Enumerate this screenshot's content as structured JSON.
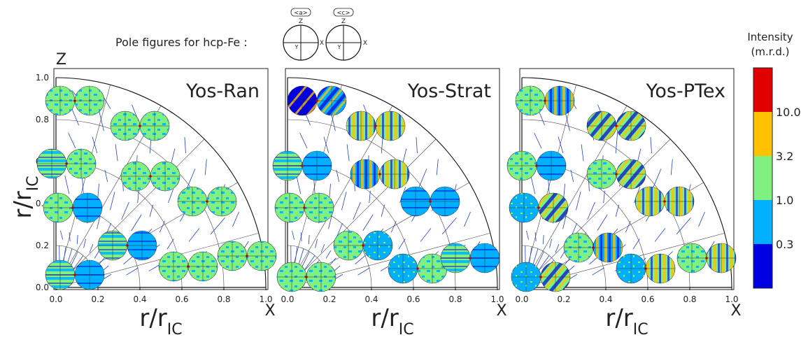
{
  "header": {
    "caption": "Pole figures for hcp-Fe :",
    "legend_a": "<a>",
    "legend_c": "<c>",
    "legend_z": "Z",
    "legend_y": "Y",
    "legend_x": "X"
  },
  "axes": {
    "y_label_main": "r/r",
    "y_label_sub": "IC",
    "x_label_main": "r/r",
    "x_label_sub": "IC",
    "z_axis_letter": "Z",
    "x_axis_letter": "X"
  },
  "colorbar": {
    "title_line1": "Intensity",
    "title_line2": "(m.r.d.)",
    "bands": [
      {
        "color": "#e00000"
      },
      {
        "color": "#ffc000"
      },
      {
        "color": "#80f080"
      },
      {
        "color": "#00b0ff"
      },
      {
        "color": "#0000e0"
      }
    ],
    "tick_labels": [
      "10.0",
      "3.2",
      "1.0",
      "0.3"
    ]
  },
  "chart_data": {
    "type": "scatter",
    "description": "",
    "xlim": [
      0,
      1
    ],
    "ylim": [
      0,
      1
    ],
    "x_ticks": [
      "0.0",
      "0.2",
      "0.4",
      "0.6",
      "0.8",
      "1.0"
    ],
    "y_ticks": [
      "0.0",
      "0.2",
      "0.4",
      "0.6",
      "0.8",
      "1.0"
    ],
    "panels": [
      {
        "title": "Yos-Ran",
        "pole_figures": [
          {
            "x": 0.09,
            "y": 0.89,
            "a_fill": "#80f080",
            "c_fill": "#80f080",
            "a_pattern": "speckle",
            "c_pattern": "speckle"
          },
          {
            "x": 0.4,
            "y": 0.77,
            "a_fill": "#80f080",
            "c_fill": "#80f080",
            "a_pattern": "speckle",
            "c_pattern": "speckle"
          },
          {
            "x": 0.05,
            "y": 0.59,
            "a_fill": "#80f080",
            "c_fill": "#80f080",
            "a_pattern": "band_h",
            "c_pattern": "speckle"
          },
          {
            "x": 0.45,
            "y": 0.53,
            "a_fill": "#80f080",
            "c_fill": "#80f080",
            "a_pattern": "speckle",
            "c_pattern": "speckle"
          },
          {
            "x": 0.08,
            "y": 0.38,
            "a_fill": "#80f080",
            "c_fill": "#00b0ff",
            "a_pattern": "speckle",
            "c_pattern": "band_h"
          },
          {
            "x": 0.72,
            "y": 0.41,
            "a_fill": "#80f080",
            "c_fill": "#80f080",
            "a_pattern": "speckle",
            "c_pattern": "speckle"
          },
          {
            "x": 0.34,
            "y": 0.2,
            "a_fill": "#80f080",
            "c_fill": "#00b0ff",
            "a_pattern": "band_h",
            "c_pattern": "band_h"
          },
          {
            "x": 0.63,
            "y": 0.1,
            "a_fill": "#80f080",
            "c_fill": "#80f080",
            "a_pattern": "speckle",
            "c_pattern": "speckle"
          },
          {
            "x": 0.91,
            "y": 0.15,
            "a_fill": "#80f080",
            "c_fill": "#80f080",
            "a_pattern": "speckle",
            "c_pattern": "speckle"
          },
          {
            "x": 0.09,
            "y": 0.06,
            "a_fill": "#80f080",
            "c_fill": "#00b0ff",
            "a_pattern": "band_h",
            "c_pattern": "band_h"
          }
        ]
      },
      {
        "title": "Yos-Strat",
        "pole_figures": [
          {
            "x": 0.14,
            "y": 0.89,
            "a_fill": "#0000e0",
            "c_fill": "#00b0ff",
            "a_pattern": "diag",
            "c_pattern": "diag"
          },
          {
            "x": 0.42,
            "y": 0.77,
            "a_fill": "#80f080",
            "c_fill": "#80f080",
            "a_pattern": "band_v",
            "c_pattern": "band_v"
          },
          {
            "x": 0.07,
            "y": 0.58,
            "a_fill": "#80f080",
            "c_fill": "#00b0ff",
            "a_pattern": "band_h",
            "c_pattern": "band_h"
          },
          {
            "x": 0.44,
            "y": 0.54,
            "a_fill": "#00b0ff",
            "c_fill": "#80f080",
            "a_pattern": "band_v",
            "c_pattern": "band_v"
          },
          {
            "x": 0.08,
            "y": 0.38,
            "a_fill": "#80f080",
            "c_fill": "#80f080",
            "a_pattern": "speckle",
            "c_pattern": "speckle"
          },
          {
            "x": 0.68,
            "y": 0.41,
            "a_fill": "#00b0ff",
            "c_fill": "#00b0ff",
            "a_pattern": "band_h",
            "c_pattern": "band_h"
          },
          {
            "x": 0.36,
            "y": 0.2,
            "a_fill": "#80f080",
            "c_fill": "#00b0ff",
            "a_pattern": "speckle",
            "c_pattern": "speckle"
          },
          {
            "x": 0.62,
            "y": 0.09,
            "a_fill": "#00b0ff",
            "c_fill": "#80f080",
            "a_pattern": "speckle",
            "c_pattern": "speckle"
          },
          {
            "x": 0.87,
            "y": 0.14,
            "a_fill": "#80f080",
            "c_fill": "#00b0ff",
            "a_pattern": "band_h",
            "c_pattern": "band_h"
          },
          {
            "x": 0.09,
            "y": 0.05,
            "a_fill": "#80f080",
            "c_fill": "#80f080",
            "a_pattern": "speckle",
            "c_pattern": "speckle"
          }
        ]
      },
      {
        "title": "Yos-PTex",
        "pole_figures": [
          {
            "x": 0.11,
            "y": 0.89,
            "a_fill": "#80f080",
            "c_fill": "#00b0ff",
            "a_pattern": "speckle",
            "c_pattern": "band_v"
          },
          {
            "x": 0.45,
            "y": 0.77,
            "a_fill": "#80f080",
            "c_fill": "#80f080",
            "a_pattern": "diag",
            "c_pattern": "diag"
          },
          {
            "x": 0.07,
            "y": 0.58,
            "a_fill": "#80f080",
            "c_fill": "#00b0ff",
            "a_pattern": "speckle",
            "c_pattern": "band_h"
          },
          {
            "x": 0.45,
            "y": 0.54,
            "a_fill": "#80f080",
            "c_fill": "#80f080",
            "a_pattern": "speckle",
            "c_pattern": "diag"
          },
          {
            "x": 0.08,
            "y": 0.38,
            "a_fill": "#00b0ff",
            "c_fill": "#80f080",
            "a_pattern": "speckle",
            "c_pattern": "diag"
          },
          {
            "x": 0.68,
            "y": 0.41,
            "a_fill": "#80f080",
            "c_fill": "#80f080",
            "a_pattern": "band_v",
            "c_pattern": "band_v"
          },
          {
            "x": 0.34,
            "y": 0.19,
            "a_fill": "#80f080",
            "c_fill": "#00b0ff",
            "a_pattern": "speckle",
            "c_pattern": "band_v"
          },
          {
            "x": 0.59,
            "y": 0.09,
            "a_fill": "#00b0ff",
            "c_fill": "#80f080",
            "a_pattern": "speckle",
            "c_pattern": "band_v"
          },
          {
            "x": 0.88,
            "y": 0.14,
            "a_fill": "#80f080",
            "c_fill": "#80f080",
            "a_pattern": "speckle",
            "c_pattern": "band_v"
          },
          {
            "x": 0.09,
            "y": 0.05,
            "a_fill": "#00b0ff",
            "c_fill": "#80f080",
            "a_pattern": "speckle",
            "c_pattern": "diag"
          }
        ]
      }
    ]
  }
}
